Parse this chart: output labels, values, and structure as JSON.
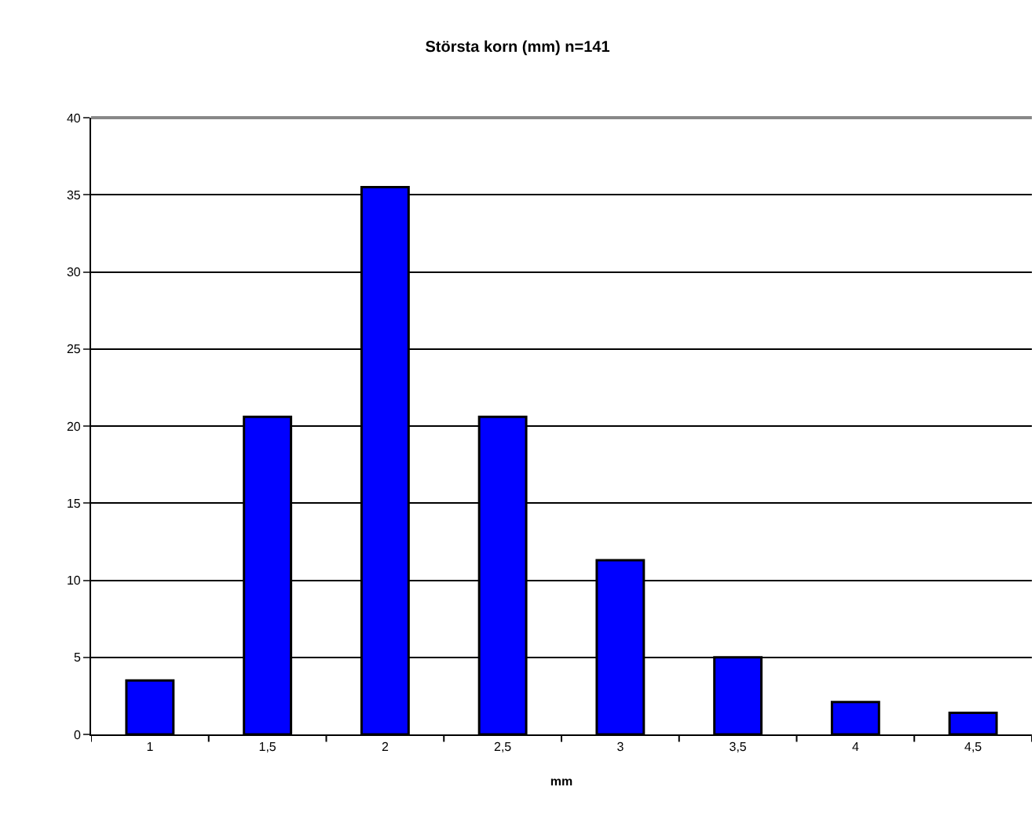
{
  "chart_data": {
    "type": "bar",
    "title": "Största korn (mm) n=141",
    "xlabel": "mm",
    "categories": [
      "1",
      "1,5",
      "2",
      "2,5",
      "3",
      "3,5",
      "4",
      "4,5"
    ],
    "values": [
      3.5,
      20.6,
      35.5,
      20.6,
      11.3,
      5.0,
      2.1,
      1.4
    ],
    "color": "#0000ff",
    "ylim": [
      0,
      40
    ],
    "yticks": [
      0,
      5,
      10,
      15,
      20,
      25,
      30,
      35,
      40
    ],
    "grid": "y"
  }
}
